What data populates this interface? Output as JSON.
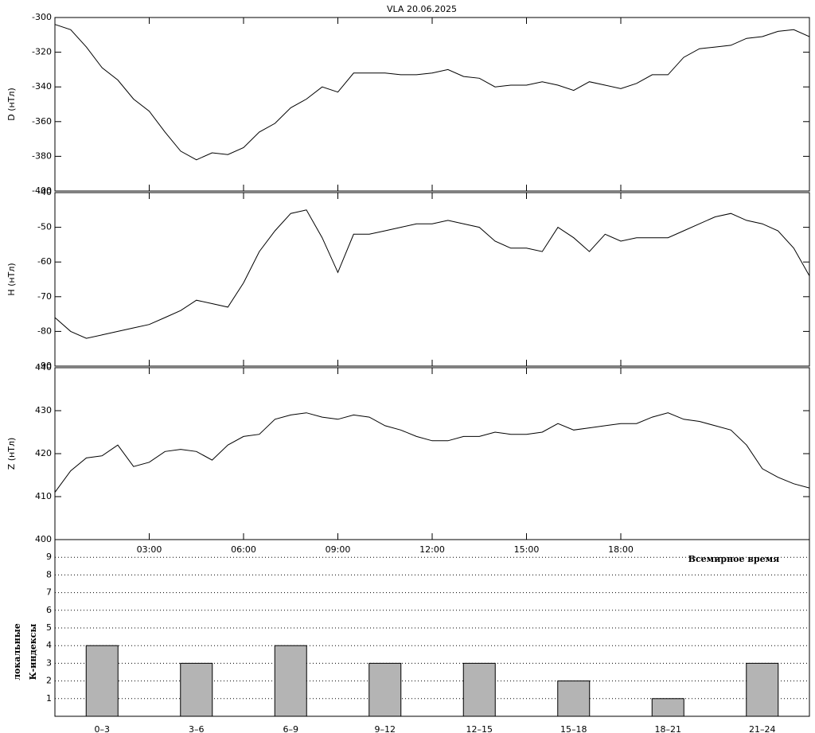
{
  "chart_data": [
    {
      "type": "line",
      "title": "VLA   20.06.2025",
      "ylabel": "D (нТл)",
      "color": "#000000",
      "x": [
        0,
        0.5,
        1,
        1.5,
        2,
        2.5,
        3,
        3.5,
        4,
        4.5,
        5,
        5.5,
        6,
        6.5,
        7,
        7.5,
        8,
        8.5,
        9,
        9.5,
        10,
        10.5,
        11,
        11.5,
        12,
        12.5,
        13,
        13.5,
        14,
        14.5,
        15,
        15.5,
        16,
        16.5,
        17,
        17.5,
        18,
        18.5,
        19,
        19.5,
        20,
        20.5,
        21,
        21.5,
        22,
        22.5,
        23,
        23.5,
        24
      ],
      "values": [
        -304,
        -307,
        -317,
        -329,
        -336,
        -347,
        -354,
        -366,
        -377,
        -382,
        -378,
        -379,
        -375,
        -366,
        -361,
        -352,
        -347,
        -340,
        -343,
        -332,
        -332,
        -332,
        -333,
        -333,
        -332,
        -330,
        -334,
        -335,
        -340,
        -339,
        -339,
        -337,
        -339,
        -342,
        -337,
        -339,
        -341,
        -338,
        -333,
        -333,
        -323,
        -318,
        -317,
        -316,
        -312,
        -311,
        -308,
        -307,
        -311
      ],
      "xlim": [
        0,
        24
      ],
      "ylim": [
        -400,
        -300
      ],
      "yticks": [
        -400,
        -380,
        -360,
        -340,
        -320,
        -300
      ]
    },
    {
      "type": "line",
      "ylabel": "H (нТл)",
      "color": "#000000",
      "x": [
        0,
        0.5,
        1,
        1.5,
        2,
        2.5,
        3,
        3.5,
        4,
        4.5,
        5,
        5.5,
        6,
        6.5,
        7,
        7.5,
        8,
        8.5,
        9,
        9.5,
        10,
        10.5,
        11,
        11.5,
        12,
        12.5,
        13,
        13.5,
        14,
        14.5,
        15,
        15.5,
        16,
        16.5,
        17,
        17.5,
        18,
        18.5,
        19,
        19.5,
        20,
        20.5,
        21,
        21.5,
        22,
        22.5,
        23,
        23.5,
        24
      ],
      "values": [
        -76,
        -80,
        -82,
        -81,
        -80,
        -79,
        -78,
        -76,
        -74,
        -71,
        -72,
        -73,
        -66,
        -57,
        -51,
        -46,
        -45,
        -53,
        -63,
        -52,
        -52,
        -51,
        -50,
        -49,
        -49,
        -48,
        -49,
        -50,
        -54,
        -56,
        -56,
        -57,
        -50,
        -53,
        -57,
        -52,
        -54,
        -53,
        -53,
        -53,
        -51,
        -49,
        -47,
        -46,
        -48,
        -49,
        -51,
        -56,
        -64
      ],
      "xlim": [
        0,
        24
      ],
      "ylim": [
        -90,
        -40
      ],
      "yticks": [
        -90,
        -80,
        -70,
        -60,
        -50,
        -40
      ]
    },
    {
      "type": "line",
      "ylabel": "Z (нТл)",
      "xlabel": "Всемирное время",
      "color": "#000000",
      "x": [
        0,
        0.5,
        1,
        1.5,
        2,
        2.5,
        3,
        3.5,
        4,
        4.5,
        5,
        5.5,
        6,
        6.5,
        7,
        7.5,
        8,
        8.5,
        9,
        9.5,
        10,
        10.5,
        11,
        11.5,
        12,
        12.5,
        13,
        13.5,
        14,
        14.5,
        15,
        15.5,
        16,
        16.5,
        17,
        17.5,
        18,
        18.5,
        19,
        19.5,
        20,
        20.5,
        21,
        21.5,
        22,
        22.5,
        23,
        23.5,
        24
      ],
      "values": [
        411,
        416,
        419,
        419.5,
        422,
        417,
        418,
        420.5,
        421,
        420.5,
        418.5,
        422,
        424,
        424.5,
        428,
        429,
        429.5,
        428.5,
        428,
        429,
        428.5,
        426.5,
        425.5,
        424,
        423,
        423,
        424,
        424,
        425,
        424.5,
        424.5,
        425,
        427,
        425.5,
        426,
        426.5,
        427,
        427,
        428.5,
        429.5,
        428,
        427.5,
        426.5,
        425.5,
        422,
        416.5,
        414.5,
        413,
        412
      ],
      "xlim": [
        0,
        24
      ],
      "ylim": [
        400,
        440
      ],
      "yticks": [
        400,
        410,
        420,
        430,
        440
      ],
      "xticks": [
        {
          "value": 3,
          "label": "03:00"
        },
        {
          "value": 6,
          "label": "06:00"
        },
        {
          "value": 9,
          "label": "09:00"
        },
        {
          "value": 12,
          "label": "12:00"
        },
        {
          "value": 15,
          "label": "15:00"
        },
        {
          "value": 18,
          "label": "18:00"
        }
      ]
    },
    {
      "type": "bar",
      "ylabel": [
        "локальные",
        "К-индексы"
      ],
      "color": "#b4b4b4",
      "categories": [
        "0–3",
        "3–6",
        "6–9",
        "9–12",
        "12–15",
        "15–18",
        "18–21",
        "21–24"
      ],
      "values": [
        4,
        3,
        4,
        3,
        3,
        2,
        1,
        3
      ],
      "ylim": [
        0,
        10
      ],
      "yticks": [
        1,
        2,
        3,
        4,
        5,
        6,
        7,
        8,
        9
      ],
      "grid": true
    }
  ]
}
